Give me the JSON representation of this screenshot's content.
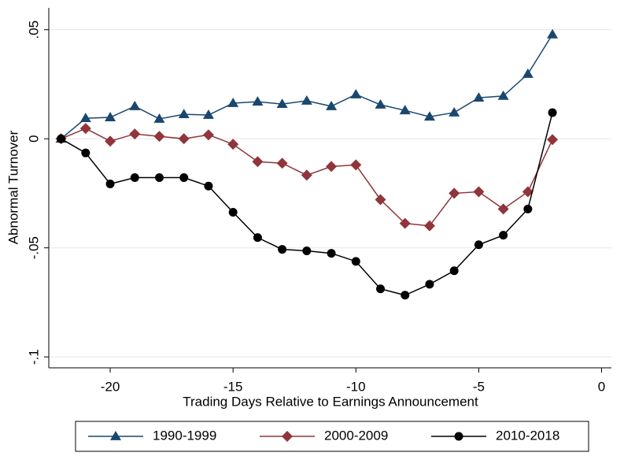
{
  "chart_data": {
    "type": "line",
    "x": [
      -22,
      -21,
      -20,
      -19,
      -18,
      -17,
      -16,
      -15,
      -14,
      -13,
      -12,
      -11,
      -10,
      -9,
      -8,
      -7,
      -6,
      -5,
      -4,
      -3,
      -2
    ],
    "series": [
      {
        "name": "1990-1999",
        "color": "#1a476f",
        "marker": "triangle",
        "values": [
          0,
          0.0094,
          0.0098,
          0.0149,
          0.0091,
          0.0112,
          0.0109,
          0.0163,
          0.017,
          0.0159,
          0.0174,
          0.0149,
          0.0203,
          0.0156,
          0.013,
          0.0101,
          0.012,
          0.0188,
          0.0196,
          0.0297,
          0.0478
        ]
      },
      {
        "name": "2000-2009",
        "color": "#90353b",
        "marker": "diamond",
        "values": [
          0,
          0.0047,
          -0.0011,
          0.0022,
          0.0011,
          0,
          0.0018,
          -0.0025,
          -0.0105,
          -0.0112,
          -0.0167,
          -0.0127,
          -0.012,
          -0.0279,
          -0.0388,
          -0.0399,
          -0.025,
          -0.0243,
          -0.0322,
          -0.0243,
          -0.0004
        ]
      },
      {
        "name": "2010-2018",
        "color": "#000000",
        "marker": "circle",
        "values": [
          0,
          -0.0065,
          -0.0207,
          -0.0178,
          -0.0178,
          -0.0178,
          -0.0217,
          -0.0337,
          -0.0453,
          -0.0507,
          -0.0514,
          -0.0525,
          -0.0562,
          -0.0688,
          -0.0717,
          -0.0667,
          -0.0605,
          -0.0486,
          -0.0442,
          -0.0322,
          0.012
        ]
      }
    ],
    "xlabel": "Trading Days Relative to Earnings Announcement",
    "ylabel": "Abnormal Turnover",
    "xlim": [
      -22.5,
      0.4
    ],
    "xticks": [
      -20,
      -15,
      -10,
      -5,
      0
    ],
    "ylim": [
      -0.105,
      0.06
    ],
    "yticks": [
      {
        "value": -0.1,
        "label": "-.1"
      },
      {
        "value": -0.05,
        "label": "-.05"
      },
      0,
      {
        "value": 0.05,
        "label": ".05"
      }
    ],
    "grid": true
  }
}
